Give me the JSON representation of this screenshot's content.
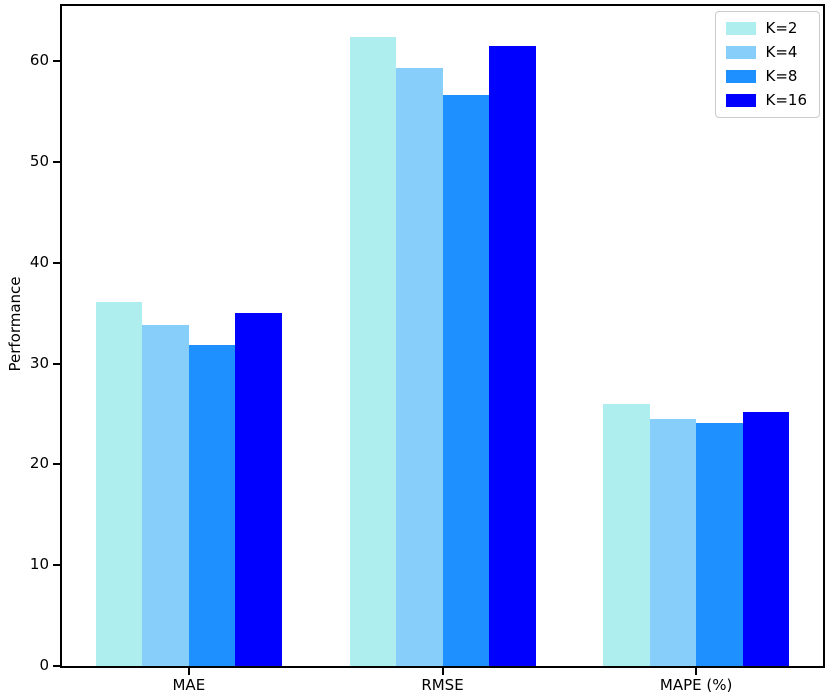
{
  "chart_data": {
    "type": "bar",
    "title": "",
    "categories": [
      "MAE",
      "RMSE",
      "MAPE (%)"
    ],
    "series": [
      {
        "name": "K=2",
        "color": "#AFEEEE",
        "values": [
          36.1,
          62.4,
          26.0
        ]
      },
      {
        "name": "K=4",
        "color": "#87CEFA",
        "values": [
          33.8,
          59.3,
          24.5
        ]
      },
      {
        "name": "K=8",
        "color": "#1E90FF",
        "values": [
          31.9,
          56.7,
          24.1
        ]
      },
      {
        "name": "K=16",
        "color": "#0000FF",
        "values": [
          35.0,
          61.5,
          25.2
        ]
      }
    ],
    "xlabel": "",
    "ylabel": "Performance",
    "ylim": [
      0,
      65.5
    ],
    "yticks": [
      0,
      10,
      20,
      30,
      40,
      50,
      60
    ],
    "grid": false,
    "legend_position": "upper-right",
    "axis_color": "#000000",
    "background_color": "#ffffff"
  }
}
